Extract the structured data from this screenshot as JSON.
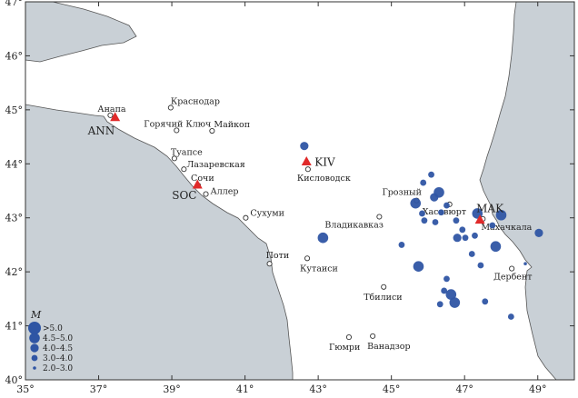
{
  "lon_range": [
    35,
    50
  ],
  "lat_range": [
    40,
    47
  ],
  "x_ticks": [
    35,
    37,
    39,
    41,
    43,
    45,
    47,
    49
  ],
  "y_ticks": [
    40,
    41,
    42,
    43,
    44,
    45,
    46,
    47
  ],
  "deg": "°",
  "colors": {
    "quake": "#2f55a4",
    "station": "#e02a2a",
    "sea": "#c9d0d6",
    "land": "#ffffff",
    "frame": "#333333"
  },
  "cities": [
    {
      "name": "Краснодар",
      "lon": 38.97,
      "lat": 45.04,
      "label_dx": 0,
      "label_dy": -4,
      "anchor": "start"
    },
    {
      "name": "Анапа",
      "lon": 37.32,
      "lat": 44.9,
      "label_dx": -14,
      "label_dy": -4,
      "anchor": "start"
    },
    {
      "name": "Горячий Ключ",
      "lon": 39.13,
      "lat": 44.62,
      "label_dx": -36,
      "label_dy": -4,
      "anchor": "start"
    },
    {
      "name": "Майкоп",
      "lon": 40.1,
      "lat": 44.61,
      "label_dx": 2,
      "label_dy": -4,
      "anchor": "start"
    },
    {
      "name": "Туапсе",
      "lon": 39.07,
      "lat": 44.1,
      "label_dx": -4,
      "label_dy": -4,
      "anchor": "start"
    },
    {
      "name": "Лазаревская",
      "lon": 39.33,
      "lat": 43.9,
      "label_dx": 3,
      "label_dy": -2,
      "anchor": "start"
    },
    {
      "name": "Сочи",
      "lon": 39.72,
      "lat": 43.6,
      "label_dx": -8,
      "label_dy": -5,
      "anchor": "start"
    },
    {
      "name": "Аллер",
      "lon": 39.93,
      "lat": 43.44,
      "label_dx": 5,
      "label_dy": 0,
      "anchor": "start"
    },
    {
      "name": "Сухуми",
      "lon": 41.02,
      "lat": 43.0,
      "label_dx": 5,
      "label_dy": -2,
      "anchor": "start"
    },
    {
      "name": "Поти",
      "lon": 41.67,
      "lat": 42.15,
      "label_dx": -4,
      "label_dy": -6,
      "anchor": "start"
    },
    {
      "name": "Кутаиси",
      "lon": 42.7,
      "lat": 42.25,
      "label_dx": -8,
      "label_dy": 14,
      "anchor": "start"
    },
    {
      "name": "Кисловодск",
      "lon": 42.72,
      "lat": 43.9,
      "label_dx": -12,
      "label_dy": 13,
      "anchor": "start"
    },
    {
      "name": "Грозный",
      "lon": 45.69,
      "lat": 43.32,
      "label_dx": -38,
      "label_dy": -6,
      "anchor": "start"
    },
    {
      "name": "Хасавюрт",
      "lon": 46.59,
      "lat": 43.25,
      "label_dx": -30,
      "label_dy": 11,
      "anchor": "start"
    },
    {
      "name": "Владикавказ",
      "lon": 44.67,
      "lat": 43.02,
      "label_dx": -60,
      "label_dy": 12,
      "anchor": "start"
    },
    {
      "name": "Махачкала",
      "lon": 47.5,
      "lat": 42.98,
      "label_dx": -2,
      "label_dy": 12,
      "anchor": "start"
    },
    {
      "name": "Дербент",
      "lon": 48.29,
      "lat": 42.06,
      "label_dx": -20,
      "label_dy": 12,
      "anchor": "start"
    },
    {
      "name": "Тбилиси",
      "lon": 44.79,
      "lat": 41.72,
      "label_dx": -22,
      "label_dy": 14,
      "anchor": "start"
    },
    {
      "name": "Гюмри",
      "lon": 43.84,
      "lat": 40.79,
      "label_dx": -22,
      "label_dy": 14,
      "anchor": "start"
    },
    {
      "name": "Ванадзор",
      "lon": 44.49,
      "lat": 40.81,
      "label_dx": -6,
      "label_dy": 14,
      "anchor": "start"
    }
  ],
  "stations": [
    {
      "code": "ANN",
      "lon": 37.45,
      "lat": 44.85,
      "label_dx": -30,
      "label_dy": 18
    },
    {
      "code": "SOC",
      "lon": 39.7,
      "lat": 43.6,
      "label_dx": -28,
      "label_dy": 15
    },
    {
      "code": "KIV",
      "lon": 42.68,
      "lat": 44.03,
      "label_dx": 9,
      "label_dy": 4
    },
    {
      "code": "MAK",
      "lon": 47.42,
      "lat": 42.95,
      "label_dx": -4,
      "label_dy": -9
    }
  ],
  "earthquakes": [
    {
      "lon": 42.62,
      "lat": 44.33,
      "m": 4.2
    },
    {
      "lon": 43.13,
      "lat": 42.63,
      "m": 4.8
    },
    {
      "lon": 45.28,
      "lat": 42.5,
      "m": 3.9
    },
    {
      "lon": 45.74,
      "lat": 42.1,
      "m": 4.8
    },
    {
      "lon": 45.66,
      "lat": 43.27,
      "m": 4.6
    },
    {
      "lon": 45.87,
      "lat": 43.65,
      "m": 3.9
    },
    {
      "lon": 46.09,
      "lat": 43.8,
      "m": 3.9
    },
    {
      "lon": 46.3,
      "lat": 43.47,
      "m": 4.6
    },
    {
      "lon": 46.17,
      "lat": 43.38,
      "m": 4.2
    },
    {
      "lon": 45.84,
      "lat": 43.08,
      "m": 3.7
    },
    {
      "lon": 45.9,
      "lat": 42.95,
      "m": 3.3
    },
    {
      "lon": 46.2,
      "lat": 42.92,
      "m": 3.6
    },
    {
      "lon": 46.36,
      "lat": 43.1,
      "m": 3.3
    },
    {
      "lon": 46.51,
      "lat": 43.23,
      "m": 3.3
    },
    {
      "lon": 46.77,
      "lat": 42.95,
      "m": 3.9
    },
    {
      "lon": 46.94,
      "lat": 42.78,
      "m": 3.6
    },
    {
      "lon": 47.02,
      "lat": 42.63,
      "m": 3.3
    },
    {
      "lon": 46.8,
      "lat": 42.63,
      "m": 4.4
    },
    {
      "lon": 47.28,
      "lat": 42.67,
      "m": 3.5
    },
    {
      "lon": 47.35,
      "lat": 43.08,
      "m": 4.5
    },
    {
      "lon": 47.76,
      "lat": 42.86,
      "m": 3.7
    },
    {
      "lon": 48.0,
      "lat": 43.05,
      "m": 4.6
    },
    {
      "lon": 47.85,
      "lat": 42.47,
      "m": 4.6
    },
    {
      "lon": 47.2,
      "lat": 42.33,
      "m": 3.6
    },
    {
      "lon": 47.44,
      "lat": 42.12,
      "m": 3.6
    },
    {
      "lon": 48.66,
      "lat": 42.15,
      "m": 2.4
    },
    {
      "lon": 49.03,
      "lat": 42.72,
      "m": 4.4
    },
    {
      "lon": 46.51,
      "lat": 41.87,
      "m": 3.6
    },
    {
      "lon": 46.63,
      "lat": 41.58,
      "m": 4.5
    },
    {
      "lon": 46.73,
      "lat": 41.43,
      "m": 4.5
    },
    {
      "lon": 46.44,
      "lat": 41.65,
      "m": 3.6
    },
    {
      "lon": 46.33,
      "lat": 41.4,
      "m": 3.7
    },
    {
      "lon": 47.56,
      "lat": 41.45,
      "m": 3.2
    },
    {
      "lon": 48.27,
      "lat": 41.17,
      "m": 3.9
    }
  ],
  "legend": {
    "title": "M",
    "items": [
      {
        "label": ">5.0",
        "m": 5.2
      },
      {
        "label": "4.5–5.0",
        "m": 4.7
      },
      {
        "label": "4.0–4.5",
        "m": 4.2
      },
      {
        "label": "3.0–4.0",
        "m": 3.5
      },
      {
        "label": "2.0–3.0",
        "m": 2.5
      }
    ]
  }
}
